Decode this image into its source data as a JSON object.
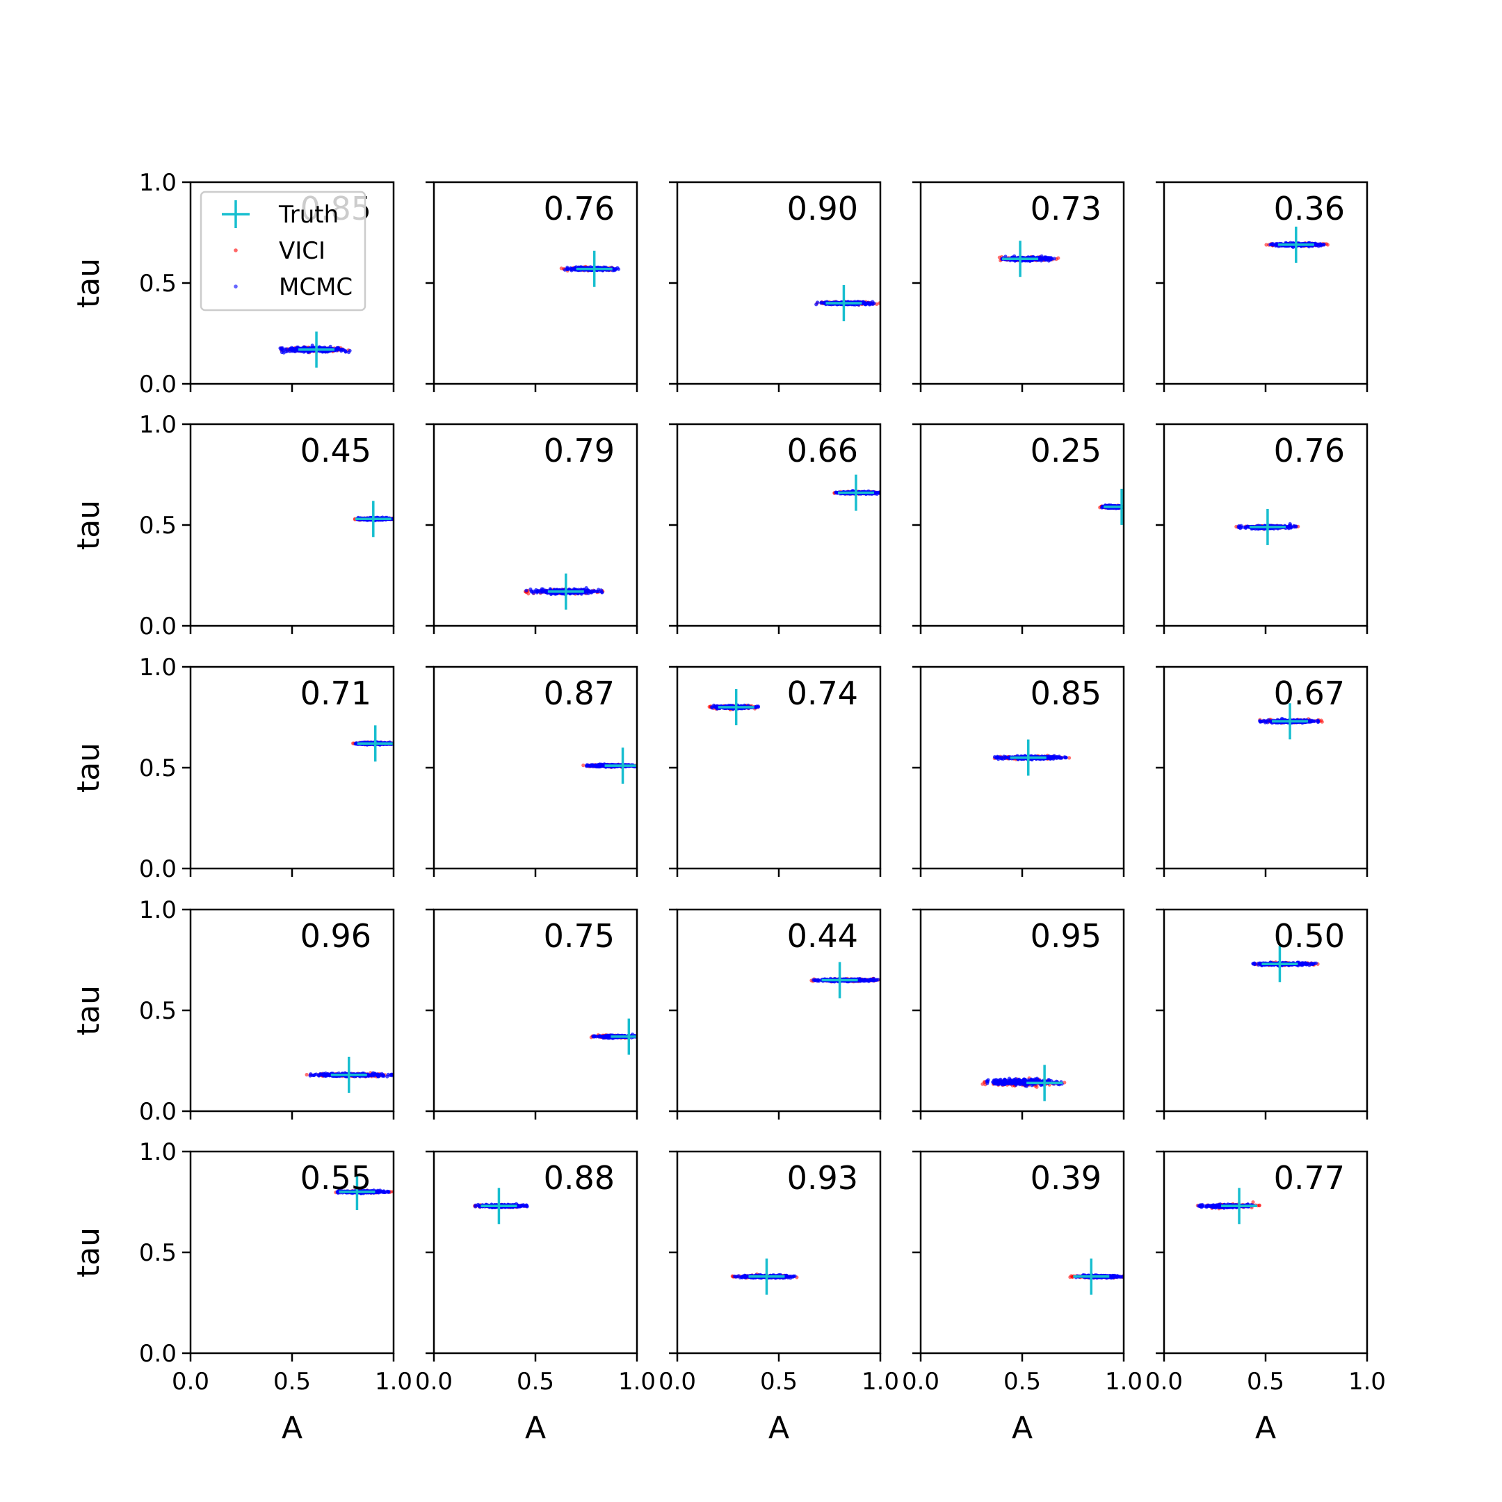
{
  "chart_data": {
    "type": "scatter",
    "layout": {
      "rows": 5,
      "cols": 5
    },
    "xlabel": "A",
    "ylabel": "tau",
    "xlim": [
      0,
      1
    ],
    "ylim": [
      0,
      1
    ],
    "xticks": [
      0,
      0.5,
      1
    ],
    "yticks": [
      0,
      0.5,
      1
    ],
    "xtick_labels": [
      "0.0",
      "0.5",
      "1.0"
    ],
    "ytick_labels": [
      "0.0",
      "0.5",
      "1.0"
    ],
    "grid": false,
    "legend": {
      "placement": "upper-left of first panel",
      "entries": [
        {
          "label": "Truth",
          "marker": "plus",
          "color": "#17becf"
        },
        {
          "label": "VICI",
          "marker": "dot",
          "color": "#ff0000"
        },
        {
          "label": "MCMC",
          "marker": "dot",
          "color": "#0000ff"
        }
      ]
    },
    "colors": {
      "truth": "#17becf",
      "vici": "#ff0000",
      "mcmc": "#0000ff"
    },
    "panels": [
      {
        "score": "0.85",
        "truth": {
          "A": 0.62,
          "tau": 0.17
        },
        "vici": {
          "A": [
            0.42,
            0.8
          ],
          "tau": 0.17,
          "spread": 0.012
        },
        "mcmc": {
          "A": [
            0.44,
            0.79
          ],
          "tau": 0.17,
          "spread": 0.012
        }
      },
      {
        "score": "0.76",
        "truth": {
          "A": 0.79,
          "tau": 0.57
        },
        "vici": {
          "A": [
            0.62,
            0.93
          ],
          "tau": 0.57,
          "spread": 0.008
        },
        "mcmc": {
          "A": [
            0.64,
            0.91
          ],
          "tau": 0.57,
          "spread": 0.008
        }
      },
      {
        "score": "0.90",
        "truth": {
          "A": 0.82,
          "tau": 0.4
        },
        "vici": {
          "A": [
            0.68,
            1.0
          ],
          "tau": 0.4,
          "spread": 0.007
        },
        "mcmc": {
          "A": [
            0.68,
            0.97
          ],
          "tau": 0.4,
          "spread": 0.007
        }
      },
      {
        "score": "0.73",
        "truth": {
          "A": 0.49,
          "tau": 0.62
        },
        "vici": {
          "A": [
            0.38,
            0.68
          ],
          "tau": 0.62,
          "spread": 0.009
        },
        "mcmc": {
          "A": [
            0.4,
            0.66
          ],
          "tau": 0.62,
          "spread": 0.009
        }
      },
      {
        "score": "0.36",
        "truth": {
          "A": 0.65,
          "tau": 0.69
        },
        "vici": {
          "A": [
            0.49,
            0.81
          ],
          "tau": 0.69,
          "spread": 0.008
        },
        "mcmc": {
          "A": [
            0.52,
            0.79
          ],
          "tau": 0.69,
          "spread": 0.008
        }
      },
      {
        "score": "0.45",
        "truth": {
          "A": 0.9,
          "tau": 0.53
        },
        "vici": {
          "A": [
            0.8,
            1.0
          ],
          "tau": 0.53,
          "spread": 0.006
        },
        "mcmc": {
          "A": [
            0.81,
            1.0
          ],
          "tau": 0.53,
          "spread": 0.006
        }
      },
      {
        "score": "0.79",
        "truth": {
          "A": 0.65,
          "tau": 0.17
        },
        "vici": {
          "A": [
            0.44,
            0.84
          ],
          "tau": 0.17,
          "spread": 0.012
        },
        "mcmc": {
          "A": [
            0.45,
            0.83
          ],
          "tau": 0.17,
          "spread": 0.012
        }
      },
      {
        "score": "0.66",
        "truth": {
          "A": 0.88,
          "tau": 0.66
        },
        "vici": {
          "A": [
            0.77,
            1.0
          ],
          "tau": 0.66,
          "spread": 0.006
        },
        "mcmc": {
          "A": [
            0.78,
            1.0
          ],
          "tau": 0.66,
          "spread": 0.006
        }
      },
      {
        "score": "0.25",
        "truth": {
          "A": 0.99,
          "tau": 0.59
        },
        "vici": {
          "A": [
            0.88,
            1.0
          ],
          "tau": 0.59,
          "spread": 0.006
        },
        "mcmc": {
          "A": [
            0.89,
            1.0
          ],
          "tau": 0.59,
          "spread": 0.006
        }
      },
      {
        "score": "0.76",
        "truth": {
          "A": 0.51,
          "tau": 0.49
        },
        "vici": {
          "A": [
            0.35,
            0.66
          ],
          "tau": 0.49,
          "spread": 0.008
        },
        "mcmc": {
          "A": [
            0.36,
            0.65
          ],
          "tau": 0.49,
          "spread": 0.008
        }
      },
      {
        "score": "0.71",
        "truth": {
          "A": 0.91,
          "tau": 0.62
        },
        "vici": {
          "A": [
            0.8,
            1.0
          ],
          "tau": 0.62,
          "spread": 0.006
        },
        "mcmc": {
          "A": [
            0.81,
            1.0
          ],
          "tau": 0.62,
          "spread": 0.006
        }
      },
      {
        "score": "0.87",
        "truth": {
          "A": 0.93,
          "tau": 0.51
        },
        "vici": {
          "A": [
            0.72,
            1.0
          ],
          "tau": 0.51,
          "spread": 0.006
        },
        "mcmc": {
          "A": [
            0.74,
            1.0
          ],
          "tau": 0.51,
          "spread": 0.006
        }
      },
      {
        "score": "0.74",
        "truth": {
          "A": 0.29,
          "tau": 0.8
        },
        "vici": {
          "A": [
            0.15,
            0.41
          ],
          "tau": 0.8,
          "spread": 0.008
        },
        "mcmc": {
          "A": [
            0.16,
            0.4
          ],
          "tau": 0.8,
          "spread": 0.008
        }
      },
      {
        "score": "0.85",
        "truth": {
          "A": 0.53,
          "tau": 0.55
        },
        "vici": {
          "A": [
            0.34,
            0.74
          ],
          "tau": 0.55,
          "spread": 0.008
        },
        "mcmc": {
          "A": [
            0.36,
            0.72
          ],
          "tau": 0.55,
          "spread": 0.008
        }
      },
      {
        "score": "0.67",
        "truth": {
          "A": 0.62,
          "tau": 0.73
        },
        "vici": {
          "A": [
            0.45,
            0.78
          ],
          "tau": 0.73,
          "spread": 0.008
        },
        "mcmc": {
          "A": [
            0.47,
            0.76
          ],
          "tau": 0.73,
          "spread": 0.008
        }
      },
      {
        "score": "0.96",
        "truth": {
          "A": 0.78,
          "tau": 0.18
        },
        "vici": {
          "A": [
            0.57,
            1.0
          ],
          "tau": 0.18,
          "spread": 0.008
        },
        "mcmc": {
          "A": [
            0.58,
            1.0
          ],
          "tau": 0.18,
          "spread": 0.008
        }
      },
      {
        "score": "0.75",
        "truth": {
          "A": 0.96,
          "tau": 0.37
        },
        "vici": {
          "A": [
            0.77,
            1.0
          ],
          "tau": 0.37,
          "spread": 0.006
        },
        "mcmc": {
          "A": [
            0.78,
            1.0
          ],
          "tau": 0.37,
          "spread": 0.006
        }
      },
      {
        "score": "0.44",
        "truth": {
          "A": 0.8,
          "tau": 0.65
        },
        "vici": {
          "A": [
            0.65,
            1.0
          ],
          "tau": 0.65,
          "spread": 0.007
        },
        "mcmc": {
          "A": [
            0.67,
            1.0
          ],
          "tau": 0.65,
          "spread": 0.007
        }
      },
      {
        "score": "0.95",
        "truth": {
          "A": 0.61,
          "tau": 0.14
        },
        "vici": {
          "A": [
            0.3,
            0.72
          ],
          "tau": 0.14,
          "spread": 0.018
        },
        "mcmc": {
          "A": [
            0.31,
            0.7
          ],
          "tau": 0.145,
          "spread": 0.016
        }
      },
      {
        "score": "0.50",
        "truth": {
          "A": 0.57,
          "tau": 0.73
        },
        "vici": {
          "A": [
            0.42,
            0.76
          ],
          "tau": 0.73,
          "spread": 0.007
        },
        "mcmc": {
          "A": [
            0.43,
            0.75
          ],
          "tau": 0.73,
          "spread": 0.007
        }
      },
      {
        "score": "0.55",
        "truth": {
          "A": 0.82,
          "tau": 0.8
        },
        "vici": {
          "A": [
            0.7,
            1.0
          ],
          "tau": 0.8,
          "spread": 0.006
        },
        "mcmc": {
          "A": [
            0.71,
            0.98
          ],
          "tau": 0.8,
          "spread": 0.006
        }
      },
      {
        "score": "0.88",
        "truth": {
          "A": 0.32,
          "tau": 0.73
        },
        "vici": {
          "A": [
            0.19,
            0.47
          ],
          "tau": 0.73,
          "spread": 0.007
        },
        "mcmc": {
          "A": [
            0.2,
            0.46
          ],
          "tau": 0.73,
          "spread": 0.007
        }
      },
      {
        "score": "0.93",
        "truth": {
          "A": 0.44,
          "tau": 0.38
        },
        "vici": {
          "A": [
            0.27,
            0.59
          ],
          "tau": 0.38,
          "spread": 0.007
        },
        "mcmc": {
          "A": [
            0.28,
            0.58
          ],
          "tau": 0.38,
          "spread": 0.007
        }
      },
      {
        "score": "0.39",
        "truth": {
          "A": 0.84,
          "tau": 0.38
        },
        "vici": {
          "A": [
            0.73,
            1.0
          ],
          "tau": 0.38,
          "spread": 0.006
        },
        "mcmc": {
          "A": [
            0.76,
            1.0
          ],
          "tau": 0.38,
          "spread": 0.006
        }
      },
      {
        "score": "0.77",
        "truth": {
          "A": 0.37,
          "tau": 0.73
        },
        "vici": {
          "A": [
            0.16,
            0.47
          ],
          "tau": 0.73,
          "spread": 0.01
        },
        "mcmc": {
          "A": [
            0.17,
            0.44
          ],
          "tau": 0.73,
          "spread": 0.008
        }
      }
    ]
  }
}
